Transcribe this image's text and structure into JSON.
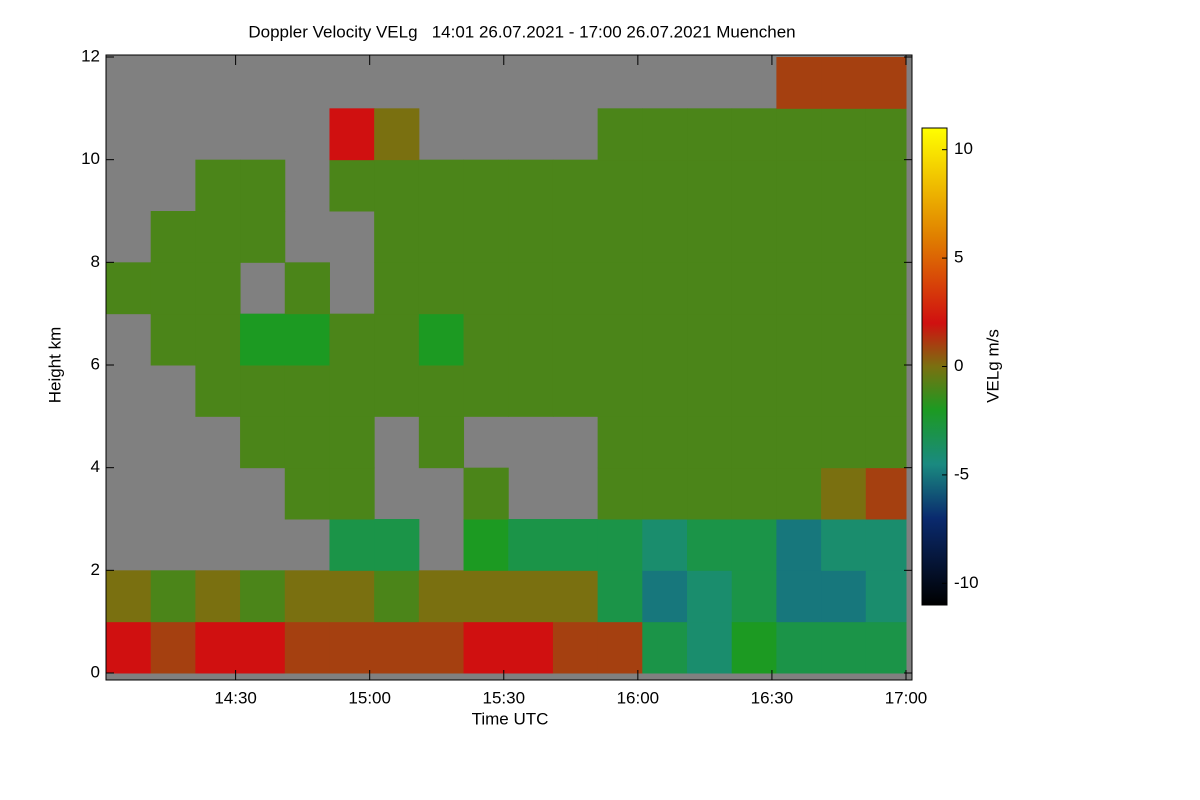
{
  "chart_data": {
    "type": "heatmap",
    "title": "Doppler Velocity VELg   14:01 26.07.2021 - 17:00 26.07.2021 Muenchen",
    "xlabel": "Time UTC",
    "ylabel": "Height km",
    "colorbar_label": "VELg m/s",
    "xlim": [
      841,
      1020
    ],
    "xticks": [
      {
        "value": 870,
        "label": "14:30"
      },
      {
        "value": 900,
        "label": "15:00"
      },
      {
        "value": 930,
        "label": "15:30"
      },
      {
        "value": 960,
        "label": "16:00"
      },
      {
        "value": 990,
        "label": "16:30"
      },
      {
        "value": 1020,
        "label": "17:00"
      }
    ],
    "ylim": [
      0,
      12
    ],
    "yticks": [
      0,
      2,
      4,
      6,
      8,
      10,
      12
    ],
    "clim": [
      -11,
      11
    ],
    "cticks": [
      -10,
      -5,
      0,
      5,
      10
    ],
    "colorscale": [
      [
        -11,
        "#000000"
      ],
      [
        -7,
        "#0a2a6e"
      ],
      [
        -4.5,
        "#1a8a80"
      ],
      [
        -2,
        "#1c9a22"
      ],
      [
        0,
        "#7a7010"
      ],
      [
        2,
        "#d01010"
      ],
      [
        6,
        "#e08000"
      ],
      [
        11,
        "#ffff00"
      ]
    ],
    "missing_color": "#808080",
    "xbins": [
      841,
      851,
      861,
      871,
      881,
      891,
      901,
      911,
      921,
      931,
      941,
      951,
      961,
      971,
      981,
      991,
      1001,
      1011,
      1020
    ],
    "ybins": [
      0,
      1,
      2,
      3,
      4,
      5,
      6,
      7,
      8,
      9,
      10,
      11,
      12
    ],
    "z": [
      [
        2,
        0,
        null,
        null,
        null,
        null,
        null,
        -1,
        null,
        null,
        null,
        null
      ],
      [
        1,
        -1,
        null,
        null,
        null,
        null,
        -1,
        -1,
        -1,
        null,
        null,
        null
      ],
      [
        2,
        0,
        null,
        null,
        null,
        -1,
        -1,
        -1,
        -1,
        -1,
        null,
        null
      ],
      [
        2,
        -1,
        null,
        null,
        -1,
        -1,
        -2,
        null,
        -1,
        -1,
        null,
        null
      ],
      [
        1,
        0,
        null,
        -1,
        -1,
        -1,
        -2,
        -1,
        null,
        null,
        null,
        null
      ],
      [
        1,
        0,
        -3,
        -1,
        -1,
        -1,
        -1,
        null,
        null,
        -1,
        2,
        null
      ],
      [
        1,
        -1,
        -3,
        null,
        null,
        -1,
        -1,
        -1,
        -1,
        -1,
        0,
        null
      ],
      [
        1,
        0,
        null,
        null,
        -1,
        -1,
        -2,
        -1,
        -1,
        -1,
        null,
        null
      ],
      [
        2,
        0,
        -2,
        -1,
        null,
        -1,
        -1,
        -1,
        -1,
        -1,
        null,
        null
      ],
      [
        2,
        0,
        -3,
        null,
        null,
        -1,
        -1,
        -1,
        -1,
        -1,
        null,
        null
      ],
      [
        1,
        0,
        -3,
        null,
        null,
        -1,
        -1,
        -1,
        -1,
        -1,
        null,
        null
      ],
      [
        1,
        -3,
        -3,
        -1,
        -1,
        -1,
        -1,
        -1,
        -1,
        -1,
        -1,
        null
      ],
      [
        -3,
        -5,
        -4,
        -1,
        -1,
        -1,
        -1,
        -1,
        -1,
        -1,
        -1,
        null
      ],
      [
        -4,
        -4,
        -3,
        -1,
        -1,
        -1,
        -1,
        -1,
        -1,
        -1,
        -1,
        null
      ],
      [
        -2,
        -3,
        -3,
        -1,
        -1,
        -1,
        -1,
        -1,
        -1,
        -1,
        -1,
        null
      ],
      [
        -3,
        -5,
        -5,
        -1,
        -1,
        -1,
        -1,
        -1,
        -1,
        -1,
        -1,
        1
      ],
      [
        -3,
        -5,
        -4,
        0,
        -1,
        -1,
        -1,
        -1,
        -1,
        -1,
        -1,
        1
      ],
      [
        -3,
        -4,
        -4,
        1,
        -1,
        -1,
        -1,
        -1,
        -1,
        -1,
        -1,
        1
      ]
    ]
  }
}
